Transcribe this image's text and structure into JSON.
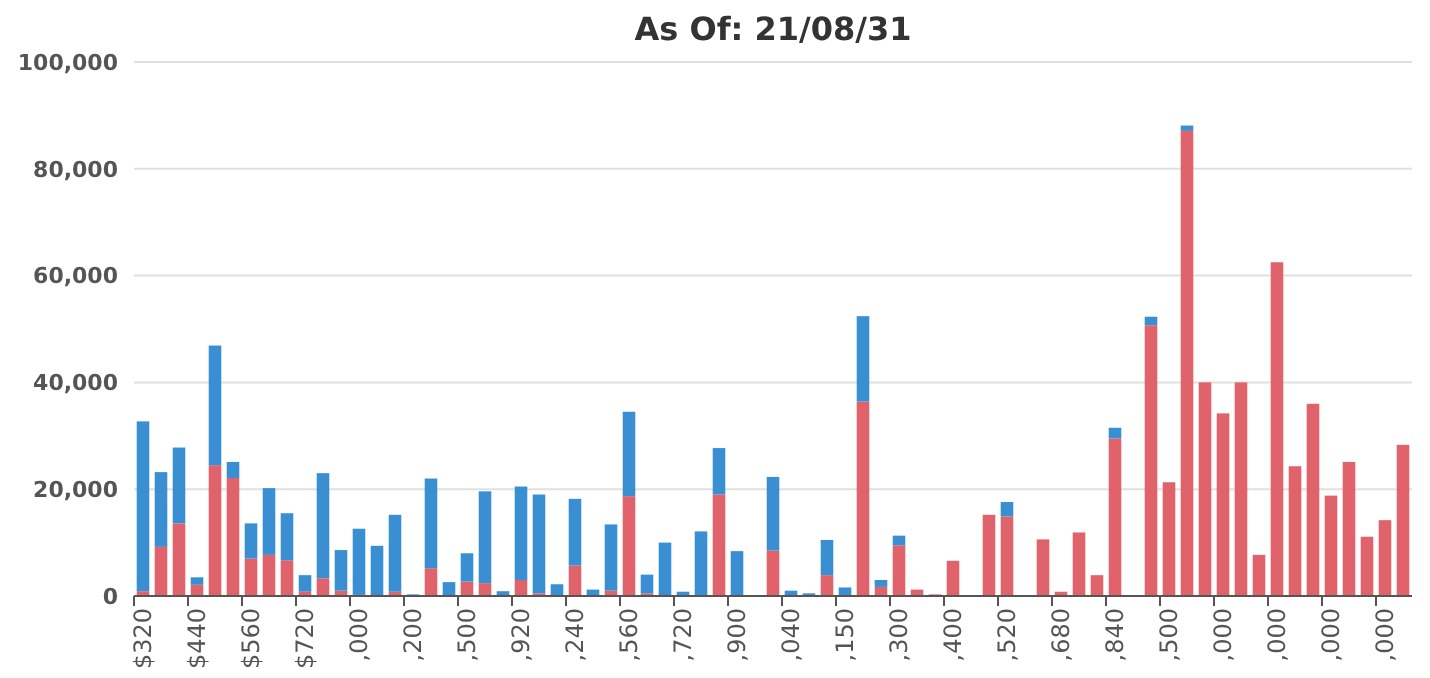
{
  "chart_data": {
    "type": "bar",
    "title": "As Of: 21/08/31",
    "stacked": true,
    "categories": [
      "$320",
      null,
      null,
      "$440",
      null,
      null,
      "$560",
      null,
      null,
      "$720",
      null,
      null,
      ",000",
      null,
      null,
      ",200",
      null,
      null,
      ",500",
      null,
      null,
      ",920",
      null,
      null,
      ",240",
      null,
      null,
      ",560",
      null,
      null,
      ",720",
      null,
      null,
      ",900",
      null,
      null,
      ",040",
      null,
      null,
      ",150",
      null,
      null,
      ",300",
      null,
      null,
      ",400",
      null,
      null,
      ",520",
      null,
      null,
      ",680",
      null,
      null,
      ",840",
      null,
      null,
      ",500",
      null,
      null,
      ",000",
      null,
      null,
      ",000",
      null,
      null,
      ",000",
      null,
      null,
      ",000",
      null
    ],
    "series": [
      {
        "color": "#e0636b",
        "values": [
          900,
          9200,
          13600,
          2100,
          24500,
          22100,
          7000,
          7700,
          6700,
          800,
          3300,
          1000,
          200,
          0,
          800,
          0,
          5200,
          0,
          2700,
          2400,
          0,
          3000,
          500,
          0,
          5700,
          0,
          1000,
          18700,
          500,
          0,
          0,
          0,
          19000,
          0,
          0,
          8500,
          0,
          0,
          3900,
          0,
          36400,
          1700,
          9500,
          1200,
          300,
          6600,
          null,
          15200,
          14900,
          0,
          10600,
          800,
          11900,
          3900,
          29500,
          0,
          50700,
          21300,
          87100,
          40000,
          34200,
          40000,
          7700,
          62500,
          24300,
          36000,
          18800,
          25100,
          11100,
          14200,
          28300
        ]
      },
      {
        "color": "#3a8fd3",
        "values": [
          31800,
          14000,
          14200,
          1400,
          22400,
          3000,
          6600,
          12500,
          8800,
          3100,
          19700,
          7600,
          12400,
          9400,
          14400,
          300,
          16800,
          2600,
          5300,
          17200,
          900,
          17500,
          18500,
          2200,
          12500,
          1200,
          12400,
          15800,
          3500,
          10000,
          800,
          12100,
          8700,
          8400,
          null,
          13800,
          1000,
          500,
          6600,
          1600,
          16000,
          1300,
          1800,
          0,
          0,
          0,
          0,
          0,
          2700,
          0,
          0,
          0,
          0,
          0,
          2000,
          0,
          1600,
          0,
          1000,
          0,
          0,
          0,
          0,
          0,
          0,
          0,
          0,
          0,
          0,
          0,
          0
        ]
      }
    ],
    "ylim": [
      0,
      100000
    ],
    "yticks": [
      {
        "value": 0,
        "label": "0"
      },
      {
        "value": 20000,
        "label": "20,000"
      },
      {
        "value": 40000,
        "label": "40,000"
      },
      {
        "value": 60000,
        "label": "60,000"
      },
      {
        "value": 80000,
        "label": "80,000"
      },
      {
        "value": 100000,
        "label": "100,000"
      }
    ],
    "grid": "y"
  }
}
